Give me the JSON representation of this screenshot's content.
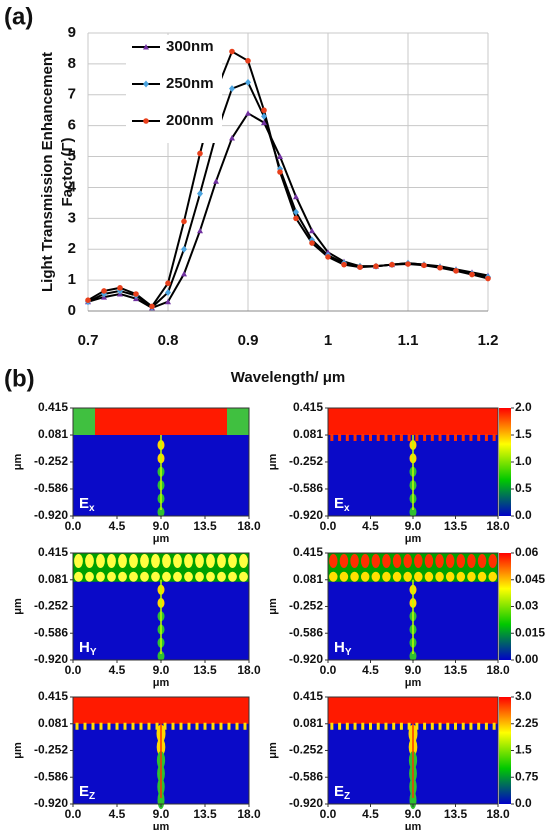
{
  "panel_labels": [
    "(a)",
    "(b)"
  ],
  "chart_data": [
    {
      "type": "line",
      "ylabel": [
        "Light Transmission Enhancement",
        "Factor (Γ)"
      ],
      "xlabel": "Wavelength/ μm",
      "xlim": [
        0.7,
        1.2
      ],
      "ylim": [
        0,
        9
      ],
      "xticks": [
        0.7,
        0.8,
        0.9,
        1,
        1.1,
        1.2
      ],
      "yticks": [
        0,
        1,
        2,
        3,
        4,
        5,
        6,
        7,
        8,
        9
      ],
      "grid": true,
      "legend": "upper left",
      "line_color": "#000000",
      "x": [
        0.7,
        0.72,
        0.74,
        0.76,
        0.78,
        0.8,
        0.82,
        0.84,
        0.86,
        0.88,
        0.9,
        0.92,
        0.94,
        0.96,
        0.98,
        1.0,
        1.02,
        1.04,
        1.06,
        1.08,
        1.1,
        1.12,
        1.14,
        1.16,
        1.18,
        1.2
      ],
      "series": [
        {
          "name": "300nm",
          "color": "#7030a0",
          "marker": "triangle",
          "values": [
            0.3,
            0.45,
            0.55,
            0.4,
            0.1,
            0.3,
            1.2,
            2.6,
            4.2,
            5.6,
            6.4,
            6.1,
            5.0,
            3.7,
            2.6,
            1.9,
            1.6,
            1.45,
            1.45,
            1.5,
            1.55,
            1.5,
            1.45,
            1.35,
            1.25,
            1.15
          ]
        },
        {
          "name": "250nm",
          "color": "#4aa3df",
          "marker": "diamond",
          "values": [
            0.3,
            0.55,
            0.65,
            0.5,
            0.12,
            0.6,
            2.0,
            3.8,
            5.7,
            7.2,
            7.4,
            6.3,
            4.6,
            3.2,
            2.3,
            1.8,
            1.55,
            1.45,
            1.45,
            1.5,
            1.55,
            1.5,
            1.42,
            1.32,
            1.2,
            1.1
          ]
        },
        {
          "name": "200nm",
          "color": "#e8401c",
          "marker": "circle",
          "values": [
            0.35,
            0.65,
            0.75,
            0.55,
            0.15,
            0.9,
            2.9,
            5.1,
            7.1,
            8.4,
            8.1,
            6.5,
            4.5,
            3.0,
            2.2,
            1.75,
            1.5,
            1.42,
            1.45,
            1.5,
            1.52,
            1.48,
            1.4,
            1.3,
            1.18,
            1.05
          ]
        }
      ]
    },
    {
      "type": "heatmap",
      "field": {
        "letter": "E",
        "sub": "x"
      },
      "xlabel": "μm",
      "ylabel": "μm",
      "xlim": [
        0,
        18
      ],
      "ylim": [
        -0.92,
        0.415
      ],
      "xticks": [
        {
          "value": 0,
          "label": "0.0"
        },
        4.5,
        {
          "value": 9,
          "label": "9.0"
        },
        13.5,
        {
          "value": 18,
          "label": "18.0"
        }
      ],
      "yticks": [
        0.415,
        0.081,
        -0.252,
        -0.586,
        {
          "value": -0.92,
          "label": "-0.920"
        }
      ]
    },
    {
      "type": "heatmap",
      "field": {
        "letter": "E",
        "sub": "x"
      },
      "xlabel": "μm",
      "ylabel": "μm",
      "xlim": [
        0,
        18
      ],
      "ylim": [
        -0.92,
        0.415
      ],
      "xticks": [
        {
          "value": 0,
          "label": "0.0"
        },
        4.5,
        {
          "value": 9,
          "label": "9.0"
        },
        13.5,
        {
          "value": 18,
          "label": "18.0"
        }
      ],
      "yticks": [
        0.415,
        0.081,
        -0.252,
        -0.586,
        {
          "value": -0.92,
          "label": "-0.920"
        }
      ],
      "clim": [
        0,
        2
      ],
      "cticks": [
        {
          "value": 0,
          "label": "0.0"
        },
        0.5,
        {
          "value": 1,
          "label": "1.0"
        },
        1.5,
        {
          "value": 2,
          "label": "2.0"
        }
      ],
      "colormap": [
        "#0000c8",
        "#00c800",
        "#ffff00",
        "#ff0000"
      ]
    },
    {
      "type": "heatmap",
      "field": {
        "letter": "H",
        "sub": "Y"
      },
      "xlabel": "μm",
      "ylabel": "μm",
      "xlim": [
        0,
        18
      ],
      "ylim": [
        -0.92,
        0.415
      ],
      "xticks": [
        {
          "value": 0,
          "label": "0.0"
        },
        4.5,
        {
          "value": 9,
          "label": "9.0"
        },
        13.5,
        {
          "value": 18,
          "label": "18.0"
        }
      ],
      "yticks": [
        0.415,
        0.081,
        -0.252,
        -0.586,
        {
          "value": -0.92,
          "label": "-0.920"
        }
      ]
    },
    {
      "type": "heatmap",
      "field": {
        "letter": "H",
        "sub": "Y"
      },
      "xlabel": "μm",
      "ylabel": "μm",
      "xlim": [
        0,
        18
      ],
      "ylim": [
        -0.92,
        0.415
      ],
      "xticks": [
        {
          "value": 0,
          "label": "0.0"
        },
        4.5,
        {
          "value": 9,
          "label": "9.0"
        },
        13.5,
        {
          "value": 18,
          "label": "18.0"
        }
      ],
      "yticks": [
        0.415,
        0.081,
        -0.252,
        -0.586,
        {
          "value": -0.92,
          "label": "-0.920"
        }
      ],
      "clim": [
        0,
        0.06
      ],
      "cticks": [
        {
          "value": 0,
          "label": "0.00"
        },
        0.015,
        0.03,
        0.045,
        0.06
      ],
      "colormap": [
        "#0000c8",
        "#00c800",
        "#ffff00",
        "#ff0000"
      ]
    },
    {
      "type": "heatmap",
      "field": {
        "letter": "E",
        "sub": "Z"
      },
      "xlabel": "μm",
      "ylabel": "μm",
      "xlim": [
        0,
        18
      ],
      "ylim": [
        -0.92,
        0.415
      ],
      "xticks": [
        {
          "value": 0,
          "label": "0.0"
        },
        4.5,
        {
          "value": 9,
          "label": "9.0"
        },
        13.5,
        {
          "value": 18,
          "label": "18.0"
        }
      ],
      "yticks": [
        0.415,
        0.081,
        -0.252,
        -0.586,
        {
          "value": -0.92,
          "label": "-0.920"
        }
      ]
    },
    {
      "type": "heatmap",
      "field": {
        "letter": "E",
        "sub": "Z"
      },
      "xlabel": "μm",
      "ylabel": "μm",
      "xlim": [
        0,
        18
      ],
      "ylim": [
        -0.92,
        0.415
      ],
      "xticks": [
        {
          "value": 0,
          "label": "0.0"
        },
        4.5,
        {
          "value": 9,
          "label": "9.0"
        },
        13.5,
        {
          "value": 18,
          "label": "18.0"
        }
      ],
      "yticks": [
        0.415,
        0.081,
        -0.252,
        -0.586,
        {
          "value": -0.92,
          "label": "-0.920"
        }
      ],
      "clim": [
        0,
        3
      ],
      "cticks": [
        {
          "value": 0,
          "label": "0.0"
        },
        0.75,
        1.5,
        2.25,
        {
          "value": 3,
          "label": "3.0"
        }
      ],
      "colormap": [
        "#0000c8",
        "#00c800",
        "#ffff00",
        "#ff0000"
      ]
    }
  ]
}
